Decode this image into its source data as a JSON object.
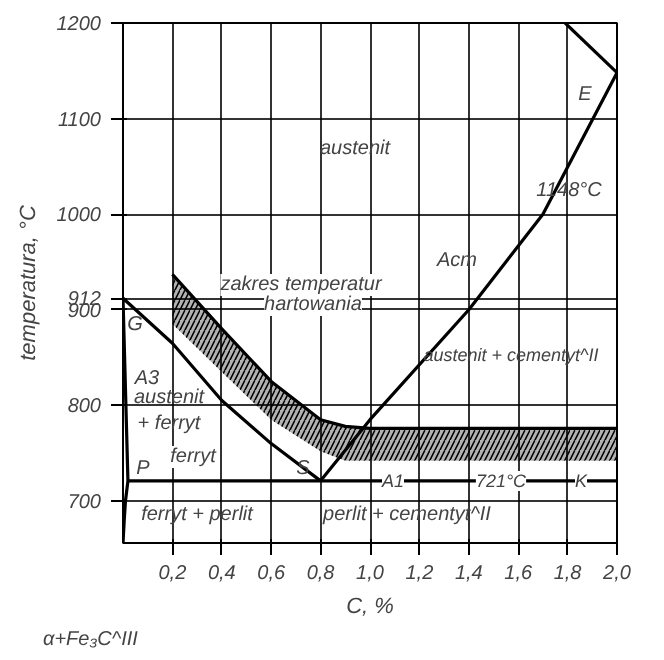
{
  "chart_data": {
    "type": "line",
    "xlabel": "C, %",
    "ylabel": "temperatura, °C",
    "xlim": [
      0,
      2.0
    ],
    "ylim": [
      656,
      1200
    ],
    "xticks": [
      {
        "value": 0.2,
        "label": "0,2"
      },
      {
        "value": 0.4,
        "label": "0,4"
      },
      {
        "value": 0.6,
        "label": "0,6"
      },
      {
        "value": 0.8,
        "label": "0,8"
      },
      {
        "value": 1.0,
        "label": "1,0"
      },
      {
        "value": 1.2,
        "label": "1,2"
      },
      {
        "value": 1.4,
        "label": "1,4"
      },
      {
        "value": 1.6,
        "label": "1,6"
      },
      {
        "value": 1.8,
        "label": "1,8"
      },
      {
        "value": 2.0,
        "label": "2,0"
      }
    ],
    "yticks": [
      700,
      800,
      900,
      912,
      1000,
      1100,
      1200
    ],
    "grid": true,
    "line_style": "solid",
    "series": [
      {
        "color": "#000000",
        "x": [
          0.2,
          0.4,
          0.6,
          0.8,
          0.9,
          1.0,
          2.0
        ],
        "values": [
          937,
          880,
          825,
          785,
          778,
          776,
          776
        ],
        "upper": [
          937,
          880,
          825,
          785,
          778,
          776,
          776
        ],
        "lower": [
          885,
          835,
          785,
          752,
          742,
          742,
          742
        ]
      },
      {
        "color": "#000000",
        "x": [
          0,
          0.2,
          0.4,
          0.6,
          0.8
        ],
        "values": [
          912,
          865,
          805,
          760,
          721
        ]
      },
      {
        "color": "#000000",
        "x": [
          0,
          0.02,
          0.01,
          0.005,
          0
        ],
        "values": [
          912,
          721,
          700,
          680,
          656
        ]
      },
      {
        "color": "#000000",
        "x": [
          0.02,
          2.0
        ],
        "values": [
          721,
          721
        ]
      },
      {
        "color": "#000000",
        "x": [
          0.8,
          1.0,
          1.4,
          1.7,
          2.0
        ],
        "values": [
          721,
          785,
          900,
          1000,
          1148
        ]
      },
      {
        "color": "#000000",
        "x": [
          1.79,
          2.0
        ],
        "values": [
          1200,
          1148
        ]
      }
    ],
    "annotations": [
      "austenit",
      "zakres temperatur",
      "hartowania",
      "Acm",
      "E",
      "1148°C",
      "austenit + cementyt^II",
      "A3",
      "G",
      "austenit\n+ ferryt",
      "ferryt",
      "P",
      "S",
      "A1",
      "721°C",
      "K",
      "ferryt + perlit",
      "perlit + cementyt^II",
      "α+Fe₃C^III"
    ]
  }
}
